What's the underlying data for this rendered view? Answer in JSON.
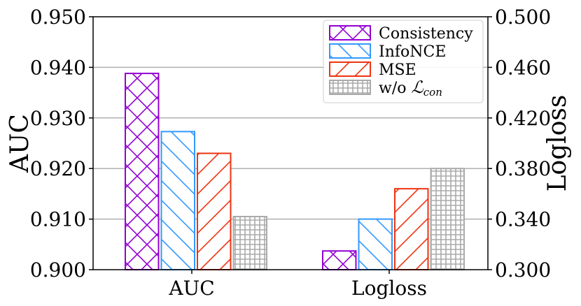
{
  "chart_data": {
    "type": "bar",
    "categories": [
      "AUC",
      "Logloss"
    ],
    "series": [
      {
        "name": "Consistency",
        "values": [
          0.9388,
          0.3148
        ],
        "color": "#9400d3",
        "hatch": "cross-diagonal"
      },
      {
        "name": "InfoNCE",
        "values": [
          0.9273,
          0.34
        ],
        "color": "#3399ff",
        "hatch": "back-diagonal"
      },
      {
        "name": "MSE",
        "values": [
          0.923,
          0.364
        ],
        "color": "#ee3311",
        "hatch": "forward-diagonal"
      },
      {
        "name": "w/o ℒcon",
        "name_main": "w/o ",
        "name_script": "ℒ",
        "name_sub": "con",
        "values": [
          0.9105,
          0.38
        ],
        "color": "#aaaaaa",
        "hatch": "grid"
      }
    ],
    "left_axis": {
      "label": "AUC",
      "ylim": [
        0.9,
        0.95
      ],
      "ticks": [
        "0.900",
        "0.910",
        "0.920",
        "0.930",
        "0.940",
        "0.950"
      ],
      "applies_to": "AUC"
    },
    "right_axis": {
      "label": "Logloss",
      "ylim": [
        0.3,
        0.5
      ],
      "ticks": [
        "0.300",
        "0.340",
        "0.380",
        "0.420",
        "0.460",
        "0.500"
      ],
      "applies_to": "Logloss"
    },
    "grid": "horizontal",
    "legend_position": "top-right"
  }
}
